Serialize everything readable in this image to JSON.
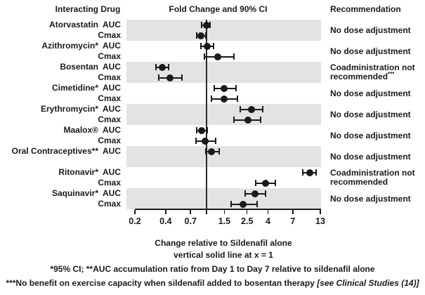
{
  "figure": {
    "header": {
      "interacting_drug": "Interacting Drug",
      "fold_change": "Fold Change and 90% CI",
      "recommendation": "Recommendation"
    },
    "axis_caption_line1": "Change relative to Sildenafil alone",
    "axis_caption_line2": "vertical solid line at x = 1",
    "footnotes": {
      "line1": "*95% CI; **AUC accumulation ratio from Day 1 to Day 7 relative to sildenafil alone",
      "line2_bold": "***No benefit on exercise capacity when sildenafil added to bosentan therapy ",
      "line2_italic": "[see Clinical Studies (14)]"
    }
  },
  "colors": {
    "band": "#e3e3e3",
    "marker": "#1a1a1a",
    "text": "#1a1a1a"
  },
  "chart_data": {
    "type": "scatter",
    "subtype": "forest-plot",
    "title": "Fold Change and 90% CI",
    "xlabel": "Change relative to Sildenafil alone",
    "x_scale": "log",
    "xlim": [
      0.2,
      13
    ],
    "x_ticks": [
      0.2,
      0.4,
      0.7,
      1,
      1.5,
      2.5,
      4,
      7,
      13
    ],
    "x_tick_labels": [
      "0.2",
      "0.4",
      "0.7",
      "",
      "1.5",
      "2.5",
      "4",
      "7",
      "13"
    ],
    "reference_line_x": 1,
    "grid": false,
    "groups": [
      {
        "drug": "Atorvastatin",
        "shaded": true,
        "recommendation_lines": [
          "No dose adjustment"
        ],
        "recommendation_sup": "",
        "rows": [
          {
            "param": "AUC",
            "fold_change": 1.0,
            "ci_low": 0.9,
            "ci_high": 1.08
          },
          {
            "param": "Cmax",
            "fold_change": 0.88,
            "ci_low": 0.8,
            "ci_high": 0.98
          }
        ]
      },
      {
        "drug": "Azithromycin*",
        "shaded": false,
        "recommendation_lines": [
          "No dose adjustment"
        ],
        "recommendation_sup": "",
        "rows": [
          {
            "param": "AUC",
            "fold_change": 1.02,
            "ci_low": 0.88,
            "ci_high": 1.18
          },
          {
            "param": "Cmax",
            "fold_change": 1.3,
            "ci_low": 0.95,
            "ci_high": 1.85
          }
        ]
      },
      {
        "drug": "Bosentan",
        "shaded": true,
        "recommendation_lines": [
          "Coadministration not",
          "recommended"
        ],
        "recommendation_sup": "***",
        "rows": [
          {
            "param": "AUC",
            "fold_change": 0.37,
            "ci_low": 0.32,
            "ci_high": 0.43
          },
          {
            "param": "Cmax",
            "fold_change": 0.44,
            "ci_low": 0.34,
            "ci_high": 0.58
          }
        ]
      },
      {
        "drug": "Cimetidine*",
        "shaded": false,
        "recommendation_lines": [
          "No dose adjustment"
        ],
        "recommendation_sup": "",
        "rows": [
          {
            "param": "AUC",
            "fold_change": 1.5,
            "ci_low": 1.2,
            "ci_high": 1.95
          },
          {
            "param": "Cmax",
            "fold_change": 1.5,
            "ci_low": 1.12,
            "ci_high": 2.0
          }
        ]
      },
      {
        "drug": "Erythromycin*",
        "shaded": true,
        "recommendation_lines": [
          "No dose adjustment"
        ],
        "recommendation_sup": "",
        "rows": [
          {
            "param": "AUC",
            "fold_change": 2.75,
            "ci_low": 2.15,
            "ci_high": 3.55
          },
          {
            "param": "Cmax",
            "fold_change": 2.55,
            "ci_low": 1.85,
            "ci_high": 3.4
          }
        ]
      },
      {
        "drug": "Maalox®",
        "shaded": false,
        "recommendation_lines": [
          "No dose adjustment"
        ],
        "recommendation_sup": "",
        "rows": [
          {
            "param": "AUC",
            "fold_change": 0.9,
            "ci_low": 0.8,
            "ci_high": 1.02
          },
          {
            "param": "Cmax",
            "fold_change": 0.97,
            "ci_low": 0.79,
            "ci_high": 1.23
          }
        ]
      },
      {
        "drug": "Oral Contraceptives**",
        "shaded": true,
        "recommendation_lines": [
          "No dose adjustment"
        ],
        "recommendation_sup": "",
        "rows": [
          {
            "param": "AUC",
            "fold_change": 1.12,
            "ci_low": 0.98,
            "ci_high": 1.33
          }
        ]
      },
      {
        "drug": "Ritonavir*",
        "shaded": false,
        "recommendation_lines": [
          "Coadministration not",
          "recommended"
        ],
        "recommendation_sup": "",
        "rows": [
          {
            "param": "AUC",
            "fold_change": 10.2,
            "ci_low": 8.8,
            "ci_high": 11.8
          },
          {
            "param": "Cmax",
            "fold_change": 3.8,
            "ci_low": 3.05,
            "ci_high": 4.7
          }
        ]
      },
      {
        "drug": "Saquinavir*",
        "shaded": true,
        "recommendation_lines": [
          "No dose adjustment"
        ],
        "recommendation_sup": "",
        "rows": [
          {
            "param": "AUC",
            "fold_change": 3.0,
            "ci_low": 2.4,
            "ci_high": 3.8
          },
          {
            "param": "Cmax",
            "fold_change": 2.3,
            "ci_low": 1.75,
            "ci_high": 3.15
          }
        ]
      }
    ]
  }
}
